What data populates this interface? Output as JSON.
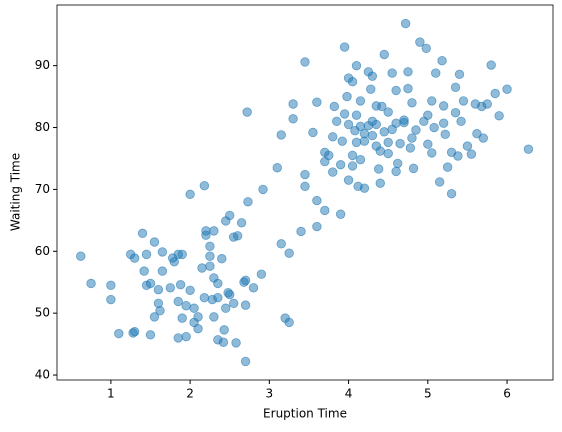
{
  "chart_data": {
    "type": "scatter",
    "x_label": "Eruption Time",
    "y_label": "Waiting Time",
    "color": "#1f77b4",
    "x": [
      0.62,
      0.75,
      1.0,
      1.0,
      1.1,
      1.25,
      1.3,
      1.3,
      1.28,
      1.4,
      1.45,
      1.42,
      1.45,
      1.5,
      1.5,
      1.55,
      1.55,
      1.6,
      1.62,
      1.65,
      1.65,
      1.6,
      1.75,
      1.78,
      1.8,
      1.85,
      1.9,
      1.88,
      1.85,
      1.85,
      1.9,
      1.95,
      1.95,
      2.0,
      2.0,
      2.05,
      2.05,
      2.1,
      2.1,
      2.15,
      2.18,
      2.2,
      2.2,
      2.18,
      2.25,
      2.25,
      2.25,
      2.3,
      2.3,
      2.28,
      2.35,
      2.35,
      2.3,
      2.35,
      2.42,
      2.43,
      2.45,
      2.48,
      2.4,
      2.45,
      2.5,
      2.5,
      2.55,
      2.55,
      2.58,
      2.6,
      2.65,
      2.68,
      2.7,
      2.7,
      2.73,
      2.7,
      2.72,
      2.8,
      2.9,
      2.92,
      3.1,
      3.15,
      3.15,
      3.2,
      3.25,
      3.25,
      3.3,
      3.3,
      3.4,
      3.45,
      3.45,
      3.45,
      3.55,
      3.6,
      3.6,
      3.6,
      3.7,
      3.7,
      3.75,
      3.8,
      3.82,
      3.85,
      3.9,
      3.92,
      3.95,
      3.98,
      4.0,
      4.0,
      4.05,
      4.05,
      4.08,
      4.1,
      4.1,
      4.12,
      4.15,
      4.15,
      4.2,
      4.2,
      4.25,
      4.28,
      4.3,
      4.3,
      4.35,
      4.35,
      4.38,
      4.4,
      4.42,
      4.45,
      4.45,
      4.5,
      4.5,
      4.55,
      4.6,
      4.6,
      4.62,
      4.65,
      4.7,
      4.72,
      4.75,
      4.78,
      4.8,
      4.82,
      4.85,
      4.9,
      4.95,
      4.98,
      5.0,
      5.0,
      5.05,
      5.05,
      5.08,
      5.1,
      5.15,
      5.18,
      5.2,
      5.2,
      5.22,
      5.25,
      5.3,
      5.3,
      5.35,
      5.35,
      5.38,
      5.4,
      5.42,
      5.45,
      5.5,
      5.55,
      5.6,
      5.62,
      5.68,
      5.7,
      5.75,
      5.8,
      5.85,
      5.9,
      6.0,
      6.27,
      4.0,
      4.1,
      4.2,
      4.3,
      4.4,
      4.5,
      4.55,
      4.7,
      4.8,
      3.7,
      3.9,
      3.8,
      4.05,
      4.6,
      3.95,
      4.15,
      4.35,
      4.25,
      4.75
    ],
    "values": [
      59.2,
      54.8,
      54.5,
      52.2,
      46.7,
      59.5,
      58.9,
      47,
      46.8,
      62.9,
      59.5,
      56.8,
      54.5,
      46.5,
      54.8,
      61.5,
      49.4,
      51.6,
      50.4,
      56.8,
      59.9,
      53.8,
      54.1,
      58.9,
      58.3,
      59.5,
      59.5,
      54.6,
      51.9,
      46,
      49.2,
      46.2,
      51.2,
      69.2,
      53.7,
      50.8,
      48.5,
      47.5,
      49.4,
      57.3,
      52.5,
      63.3,
      62.6,
      70.6,
      60.8,
      59.2,
      57.6,
      63.3,
      55.7,
      52.2,
      54.8,
      52.5,
      49.4,
      45.7,
      45.3,
      47.3,
      50.8,
      53.3,
      58.8,
      64.9,
      65.8,
      53,
      62.3,
      51.6,
      45.2,
      62.5,
      64.6,
      55,
      55.3,
      51.3,
      68,
      42.2,
      82.5,
      54.1,
      56.3,
      70,
      73.5,
      78.8,
      61.2,
      49.2,
      48.5,
      59.7,
      81.4,
      83.8,
      63.2,
      72.4,
      70.5,
      90.6,
      79.2,
      68.2,
      64,
      84.1,
      66.6,
      76,
      75.5,
      78.5,
      83.4,
      81,
      66,
      77.8,
      93,
      85,
      88,
      71.5,
      87.4,
      75.5,
      79.5,
      90,
      82,
      70.5,
      74.8,
      84.3,
      77.8,
      70.2,
      80.3,
      86.2,
      88.3,
      81,
      83.5,
      77,
      73.3,
      71,
      83.4,
      91.8,
      79.3,
      82.5,
      75.8,
      88.8,
      80.7,
      86,
      74.2,
      77.4,
      81.2,
      96.8,
      89,
      76.7,
      84,
      73.4,
      79.6,
      93.8,
      81,
      92.8,
      77.3,
      82,
      75.9,
      84.3,
      80,
      88.8,
      71.2,
      90.8,
      80.7,
      83.5,
      78.9,
      73.6,
      69.3,
      76,
      82.4,
      86.5,
      75.4,
      88.6,
      81,
      84.3,
      77,
      75.7,
      83.8,
      79,
      83.4,
      78.3,
      83.8,
      90.1,
      85.5,
      81.9,
      86.2,
      76.5,
      80.5,
      77.6,
      79,
      78.7,
      76.2,
      77.6,
      79.7,
      80.8,
      78.3,
      74.5,
      74,
      72.8,
      73.8,
      72.9,
      82.2,
      80.2,
      80.5,
      89,
      86.3
    ],
    "xlim": [
      0.32,
      6.58
    ],
    "xticks": [
      1,
      2,
      3,
      4,
      5,
      6
    ],
    "ylim": [
      39.2,
      99.8
    ],
    "yticks": [
      40,
      50,
      60,
      70,
      80,
      90
    ]
  }
}
